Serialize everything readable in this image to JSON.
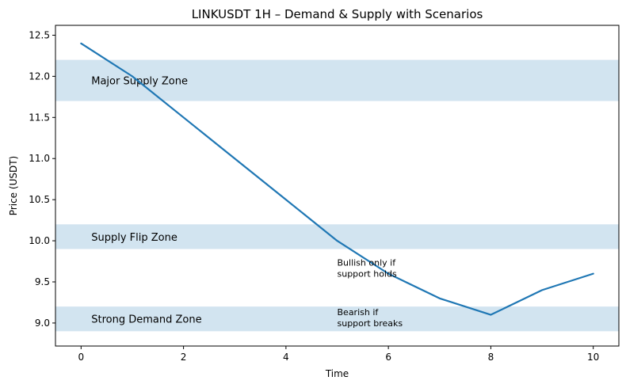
{
  "chart_data": {
    "type": "line",
    "title": "LINKUSDT 1H – Demand & Supply with Scenarios",
    "xlabel": "Time",
    "ylabel": "Price (USDT)",
    "xlim": [
      -0.5,
      10.5
    ],
    "ylim": [
      8.72,
      12.62
    ],
    "xticks": [
      0,
      2,
      4,
      6,
      8,
      10
    ],
    "yticks": [
      9.0,
      9.5,
      10.0,
      10.5,
      11.0,
      11.5,
      12.0,
      12.5
    ],
    "ytick_labels": [
      "9.0",
      "9.5",
      "10.0",
      "10.5",
      "11.0",
      "11.5",
      "12.0",
      "12.5"
    ],
    "series": [
      {
        "name": "Price",
        "x": [
          0,
          1,
          2,
          3,
          4,
          5,
          6,
          7,
          8,
          9,
          10
        ],
        "values": [
          12.4,
          12.0,
          11.5,
          11.0,
          10.5,
          10.0,
          9.6,
          9.3,
          9.1,
          9.4,
          9.6
        ],
        "color": "#1f77b4"
      }
    ],
    "zones": [
      {
        "label": "Major Supply Zone",
        "y0": 11.7,
        "y1": 12.2,
        "label_x": 0.2,
        "label_y": 11.95
      },
      {
        "label": "Supply Flip Zone",
        "y0": 9.9,
        "y1": 10.2,
        "label_x": 0.2,
        "label_y": 10.05
      },
      {
        "label": "Strong Demand Zone",
        "y0": 8.9,
        "y1": 9.2,
        "label_x": 0.2,
        "label_y": 9.05
      }
    ],
    "zone_color": "#1f77b4",
    "annotations": [
      {
        "lines": [
          "Bullish only if",
          "support holds"
        ],
        "x": 5,
        "y": 9.6
      },
      {
        "lines": [
          "Bearish if",
          "support breaks"
        ],
        "x": 5,
        "y": 9.0
      }
    ],
    "grid": false
  }
}
